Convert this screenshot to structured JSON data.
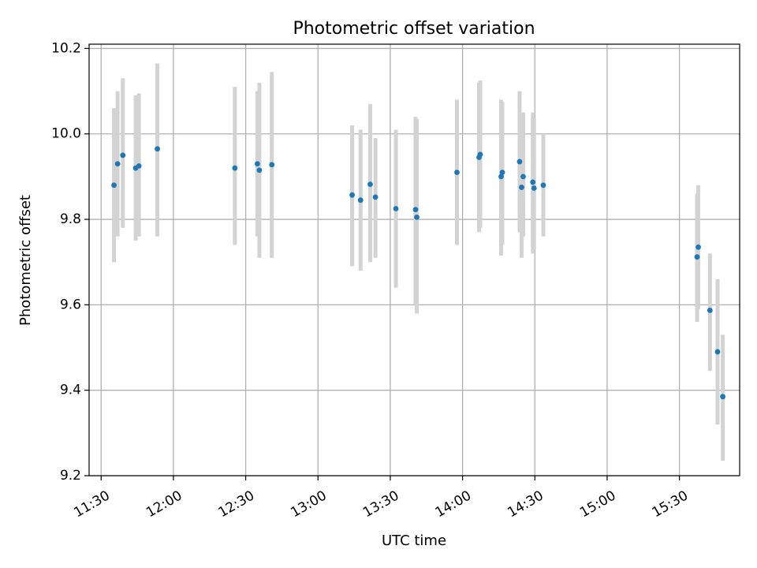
{
  "chart_data": {
    "type": "scatter",
    "title": "Photometric offset variation",
    "xlabel": "UTC time",
    "ylabel": "Photometric offset",
    "x_is_time": true,
    "xlim": [
      "11:25",
      "15:55"
    ],
    "ylim": [
      9.2,
      10.21
    ],
    "xticks": [
      "11:30",
      "12:00",
      "12:30",
      "13:00",
      "13:30",
      "14:00",
      "14:30",
      "15:00",
      "15:30"
    ],
    "yticks": [
      "9.2",
      "9.4",
      "9.6",
      "9.8",
      "10.0",
      "10.2"
    ],
    "grid": true,
    "colors": {
      "point": "#1f77b4",
      "errorbar": "#d3d3d3",
      "grid": "#b0b0b0"
    },
    "points": [
      {
        "x": "11:35:20",
        "y": 9.88,
        "ylo": 9.7,
        "yhi": 10.06
      },
      {
        "x": "11:36:50",
        "y": 9.93,
        "ylo": 9.76,
        "yhi": 10.1
      },
      {
        "x": "11:39:00",
        "y": 9.95,
        "ylo": 9.78,
        "yhi": 10.13
      },
      {
        "x": "11:44:20",
        "y": 9.92,
        "ylo": 9.75,
        "yhi": 10.09
      },
      {
        "x": "11:45:40",
        "y": 9.925,
        "ylo": 9.76,
        "yhi": 10.095
      },
      {
        "x": "11:53:20",
        "y": 9.965,
        "ylo": 9.76,
        "yhi": 10.165
      },
      {
        "x": "12:25:30",
        "y": 9.92,
        "ylo": 9.74,
        "yhi": 10.11
      },
      {
        "x": "12:34:50",
        "y": 9.93,
        "ylo": 9.76,
        "yhi": 10.1
      },
      {
        "x": "12:35:40",
        "y": 9.915,
        "ylo": 9.71,
        "yhi": 10.12
      },
      {
        "x": "12:40:50",
        "y": 9.928,
        "ylo": 9.71,
        "yhi": 10.145
      },
      {
        "x": "13:14:10",
        "y": 9.857,
        "ylo": 9.69,
        "yhi": 10.02
      },
      {
        "x": "13:17:40",
        "y": 9.845,
        "ylo": 9.68,
        "yhi": 10.01
      },
      {
        "x": "13:21:40",
        "y": 9.882,
        "ylo": 9.7,
        "yhi": 10.07
      },
      {
        "x": "13:23:50",
        "y": 9.852,
        "ylo": 9.71,
        "yhi": 9.99
      },
      {
        "x": "13:32:20",
        "y": 9.825,
        "ylo": 9.64,
        "yhi": 10.01
      },
      {
        "x": "13:40:30",
        "y": 9.823,
        "ylo": 9.6,
        "yhi": 10.04
      },
      {
        "x": "13:41:00",
        "y": 9.805,
        "ylo": 9.58,
        "yhi": 10.035
      },
      {
        "x": "13:57:40",
        "y": 9.91,
        "ylo": 9.74,
        "yhi": 10.08
      },
      {
        "x": "14:06:50",
        "y": 9.945,
        "ylo": 9.77,
        "yhi": 10.12
      },
      {
        "x": "14:07:20",
        "y": 9.952,
        "ylo": 9.78,
        "yhi": 10.125
      },
      {
        "x": "14:16:00",
        "y": 9.9,
        "ylo": 9.715,
        "yhi": 10.08
      },
      {
        "x": "14:16:30",
        "y": 9.91,
        "ylo": 9.74,
        "yhi": 10.075
      },
      {
        "x": "14:23:40",
        "y": 9.935,
        "ylo": 9.77,
        "yhi": 10.1
      },
      {
        "x": "14:24:30",
        "y": 9.875,
        "ylo": 9.71,
        "yhi": 10.05
      },
      {
        "x": "14:25:10",
        "y": 9.9,
        "ylo": 9.76,
        "yhi": 10.05
      },
      {
        "x": "14:29:10",
        "y": 9.887,
        "ylo": 9.72,
        "yhi": 10.05
      },
      {
        "x": "14:29:40",
        "y": 9.873,
        "ylo": 9.73,
        "yhi": 10.035
      },
      {
        "x": "14:33:30",
        "y": 9.88,
        "ylo": 9.76,
        "yhi": 10.0
      },
      {
        "x": "15:37:20",
        "y": 9.712,
        "ylo": 9.56,
        "yhi": 9.86
      },
      {
        "x": "15:37:50",
        "y": 9.735,
        "ylo": 9.59,
        "yhi": 9.88
      },
      {
        "x": "15:42:40",
        "y": 9.587,
        "ylo": 9.445,
        "yhi": 9.72
      },
      {
        "x": "15:45:50",
        "y": 9.49,
        "ylo": 9.32,
        "yhi": 9.66
      },
      {
        "x": "15:48:00",
        "y": 9.385,
        "ylo": 9.235,
        "yhi": 9.53
      }
    ]
  }
}
